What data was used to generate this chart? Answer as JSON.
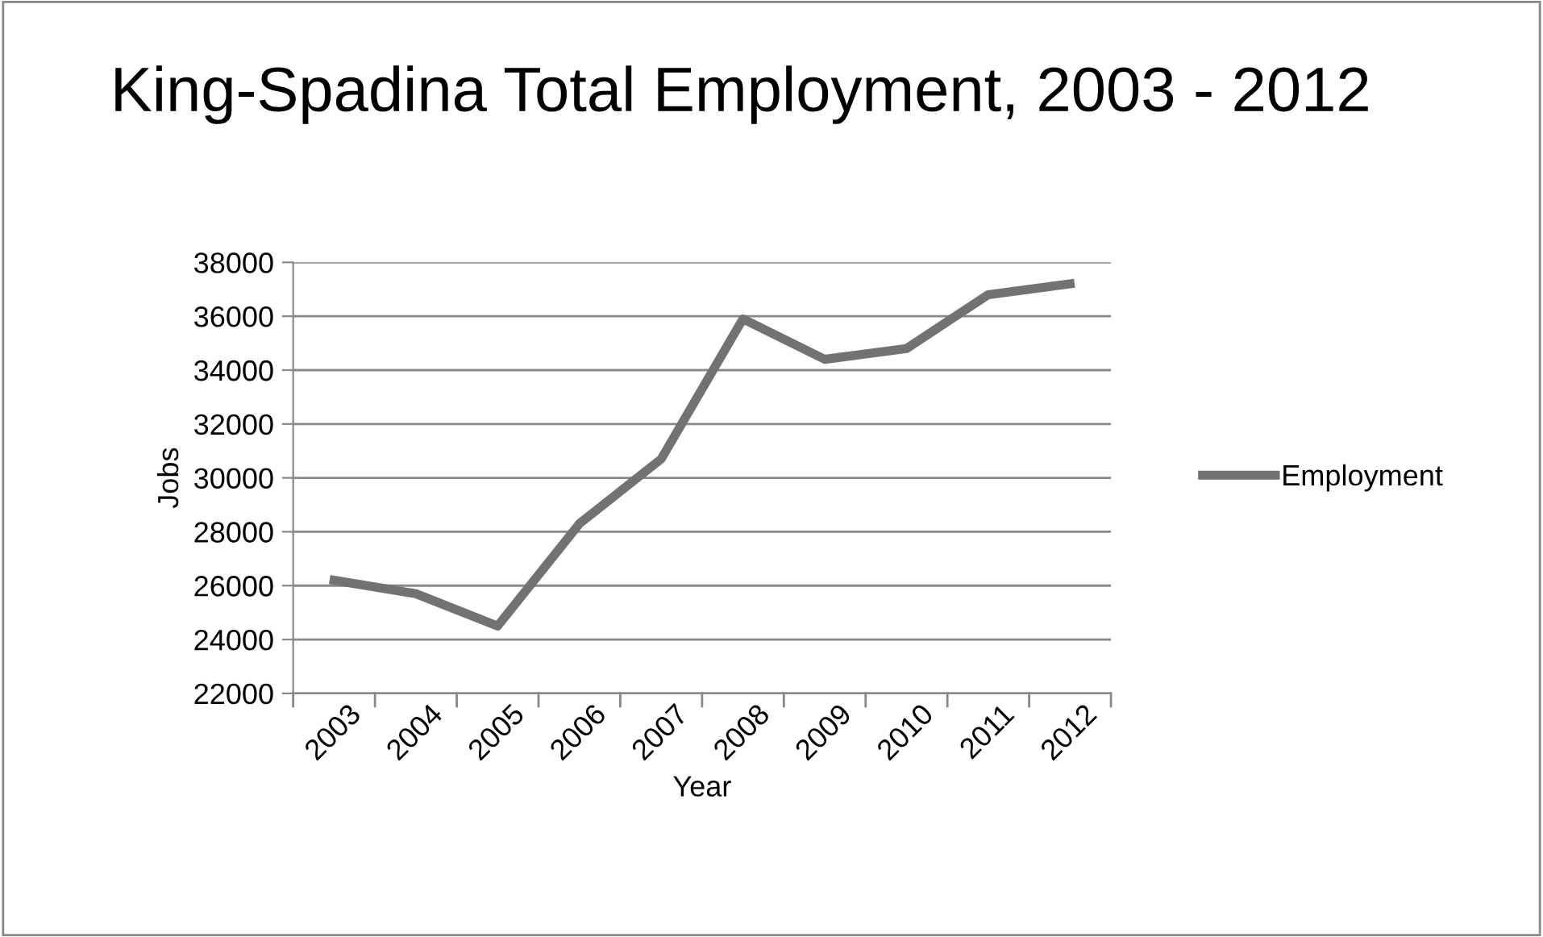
{
  "chart_data": {
    "type": "line",
    "title": "King-Spadina Total Employment, 2003 - 2012",
    "xlabel": "Year",
    "ylabel": "Jobs",
    "categories": [
      "2003",
      "2004",
      "2005",
      "2006",
      "2007",
      "2008",
      "2009",
      "2010",
      "2011",
      "2012"
    ],
    "series": [
      {
        "name": "Employment",
        "color": "#727272",
        "values": [
          26200,
          25700,
          24500,
          28300,
          30700,
          35900,
          34400,
          34800,
          36800,
          37200
        ]
      }
    ],
    "ylim": [
      22000,
      38000
    ],
    "yticks": [
      22000,
      24000,
      26000,
      28000,
      30000,
      32000,
      34000,
      36000,
      38000
    ],
    "grid": "y",
    "legend": "right",
    "marker": "none",
    "line_style": "solid"
  }
}
